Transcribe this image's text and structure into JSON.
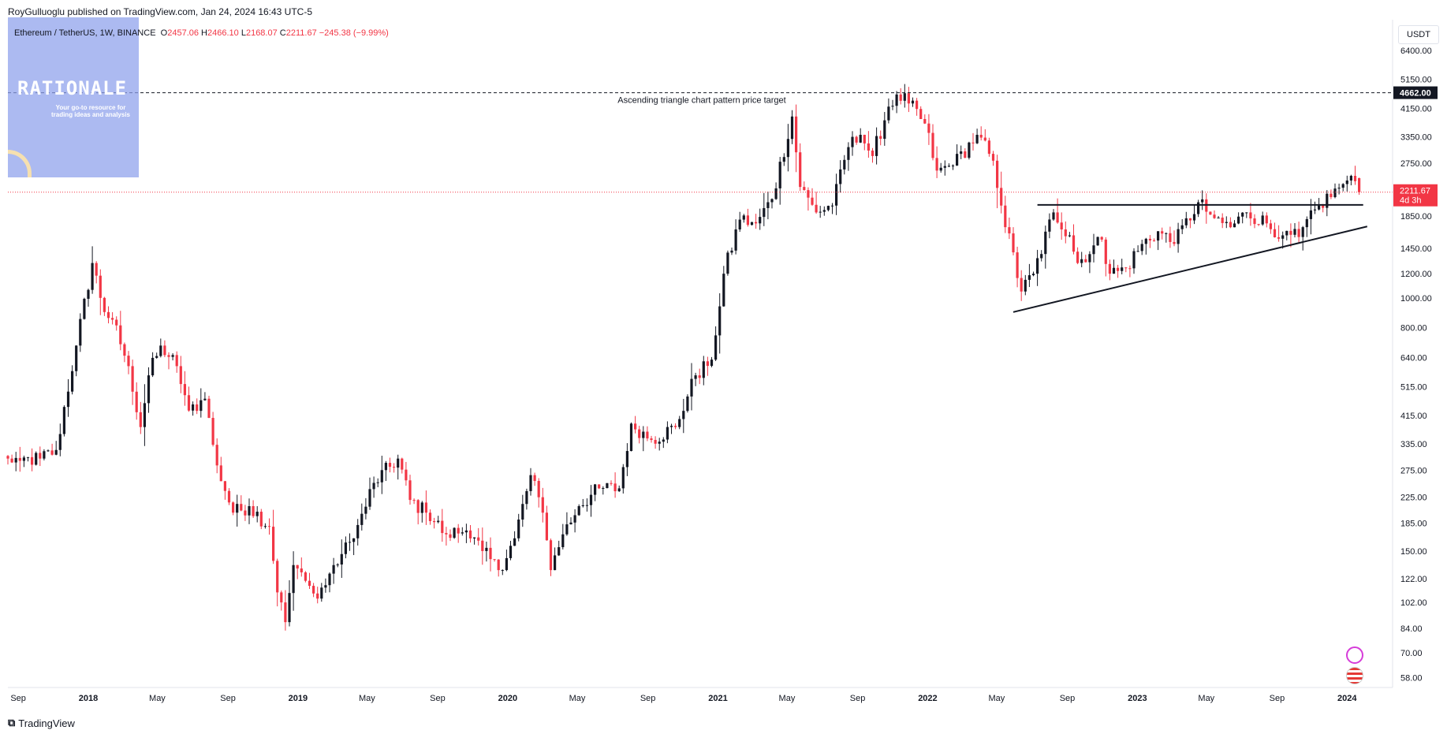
{
  "header": {
    "published": "RoyGulluoglu published on TradingView.com, Jan 24, 2024 16:43 UTC-5",
    "symbol": "Ethereum / TetherUS, 1W, BINANCE",
    "ohlc": [
      {
        "label": "O",
        "value": "2457.06"
      },
      {
        "label": "H",
        "value": "2466.10"
      },
      {
        "label": "L",
        "value": "2168.07"
      },
      {
        "label": "C",
        "value": "2211.67"
      }
    ],
    "change": "−245.38 (−9.99%)"
  },
  "watermark": {
    "title": "RATIONALE",
    "subtitle": "Your go-to resource for trading ideas and analysis"
  },
  "currency_button": "USDT",
  "footer": {
    "brand": "TradingView",
    "brand_icon": "tradingview-logo-icon"
  },
  "colors": {
    "up": "#131722",
    "down": "#f23645",
    "price_line": "#f23645",
    "target_line": "#131722",
    "watermark": "#8ca0eb"
  },
  "chart_data": {
    "type": "candlestick",
    "symbol": "ETH/USDT",
    "interval": "1W",
    "scale": "log",
    "y_ticks": [
      6400,
      5150,
      4150,
      3350,
      2750,
      1850,
      1450,
      1200,
      1000,
      800,
      640,
      515,
      415,
      335,
      275,
      225,
      185,
      150,
      122,
      102,
      84,
      70,
      58
    ],
    "x_ticks": [
      {
        "label": "Sep",
        "date": "2017-09-01"
      },
      {
        "label": "2018",
        "date": "2018-01-01"
      },
      {
        "label": "May",
        "date": "2018-05-01"
      },
      {
        "label": "Sep",
        "date": "2018-09-01"
      },
      {
        "label": "2019",
        "date": "2019-01-01"
      },
      {
        "label": "May",
        "date": "2019-05-01"
      },
      {
        "label": "Sep",
        "date": "2019-09-01"
      },
      {
        "label": "2020",
        "date": "2020-01-01"
      },
      {
        "label": "May",
        "date": "2020-05-01"
      },
      {
        "label": "Sep",
        "date": "2020-09-01"
      },
      {
        "label": "2021",
        "date": "2021-01-01"
      },
      {
        "label": "May",
        "date": "2021-05-01"
      },
      {
        "label": "Sep",
        "date": "2021-09-01"
      },
      {
        "label": "2022",
        "date": "2022-01-01"
      },
      {
        "label": "May",
        "date": "2022-05-01"
      },
      {
        "label": "Sep",
        "date": "2022-09-01"
      },
      {
        "label": "2023",
        "date": "2023-01-01"
      },
      {
        "label": "May",
        "date": "2023-05-01"
      },
      {
        "label": "Sep",
        "date": "2023-09-01"
      },
      {
        "label": "2024",
        "date": "2024-01-01"
      }
    ],
    "anchors": [
      {
        "date": "2017-08-14",
        "close": 300
      },
      {
        "date": "2017-09-04",
        "close": 295
      },
      {
        "date": "2017-10-09",
        "close": 300
      },
      {
        "date": "2017-11-06",
        "close": 320
      },
      {
        "date": "2017-12-11",
        "close": 700
      },
      {
        "date": "2018-01-08",
        "close": 1300
      },
      {
        "date": "2018-01-29",
        "close": 900
      },
      {
        "date": "2018-02-12",
        "close": 850
      },
      {
        "date": "2018-03-12",
        "close": 600
      },
      {
        "date": "2018-04-02",
        "close": 380
      },
      {
        "date": "2018-04-16",
        "close": 560
      },
      {
        "date": "2018-05-07",
        "close": 700
      },
      {
        "date": "2018-06-04",
        "close": 600
      },
      {
        "date": "2018-06-25",
        "close": 430
      },
      {
        "date": "2018-07-23",
        "close": 470
      },
      {
        "date": "2018-08-13",
        "close": 285
      },
      {
        "date": "2018-09-10",
        "close": 200
      },
      {
        "date": "2018-10-08",
        "close": 210
      },
      {
        "date": "2018-11-12",
        "close": 180
      },
      {
        "date": "2018-11-26",
        "close": 110
      },
      {
        "date": "2018-12-10",
        "close": 88
      },
      {
        "date": "2018-12-24",
        "close": 135
      },
      {
        "date": "2019-01-14",
        "close": 120
      },
      {
        "date": "2019-02-04",
        "close": 105
      },
      {
        "date": "2019-03-04",
        "close": 135
      },
      {
        "date": "2019-04-08",
        "close": 165
      },
      {
        "date": "2019-05-13",
        "close": 250
      },
      {
        "date": "2019-06-24",
        "close": 300
      },
      {
        "date": "2019-07-15",
        "close": 220
      },
      {
        "date": "2019-08-12",
        "close": 200
      },
      {
        "date": "2019-09-16",
        "close": 170
      },
      {
        "date": "2019-10-21",
        "close": 175
      },
      {
        "date": "2019-11-18",
        "close": 150
      },
      {
        "date": "2019-12-16",
        "close": 130
      },
      {
        "date": "2020-01-13",
        "close": 165
      },
      {
        "date": "2020-02-10",
        "close": 265
      },
      {
        "date": "2020-03-02",
        "close": 200
      },
      {
        "date": "2020-03-16",
        "close": 130
      },
      {
        "date": "2020-04-06",
        "close": 170
      },
      {
        "date": "2020-05-04",
        "close": 210
      },
      {
        "date": "2020-06-08",
        "close": 240
      },
      {
        "date": "2020-07-13",
        "close": 240
      },
      {
        "date": "2020-08-03",
        "close": 390
      },
      {
        "date": "2020-09-07",
        "close": 345
      },
      {
        "date": "2020-10-19",
        "close": 380
      },
      {
        "date": "2020-11-23",
        "close": 560
      },
      {
        "date": "2020-12-21",
        "close": 630
      },
      {
        "date": "2021-01-11",
        "close": 1200
      },
      {
        "date": "2021-02-08",
        "close": 1800
      },
      {
        "date": "2021-03-08",
        "close": 1750
      },
      {
        "date": "2021-04-05",
        "close": 2100
      },
      {
        "date": "2021-05-10",
        "close": 3900
      },
      {
        "date": "2021-05-24",
        "close": 2300
      },
      {
        "date": "2021-06-21",
        "close": 1900
      },
      {
        "date": "2021-07-19",
        "close": 2000
      },
      {
        "date": "2021-08-16",
        "close": 3100
      },
      {
        "date": "2021-09-06",
        "close": 3400
      },
      {
        "date": "2021-09-27",
        "close": 2900
      },
      {
        "date": "2021-10-25",
        "close": 4200
      },
      {
        "date": "2021-11-08",
        "close": 4600
      },
      {
        "date": "2021-11-29",
        "close": 4300
      },
      {
        "date": "2021-12-27",
        "close": 3700
      },
      {
        "date": "2022-01-17",
        "close": 2600
      },
      {
        "date": "2022-02-14",
        "close": 2700
      },
      {
        "date": "2022-03-28",
        "close": 3400
      },
      {
        "date": "2022-04-25",
        "close": 2800
      },
      {
        "date": "2022-05-09",
        "close": 2000
      },
      {
        "date": "2022-06-13",
        "close": 1050
      },
      {
        "date": "2022-07-04",
        "close": 1200
      },
      {
        "date": "2022-08-08",
        "close": 1900
      },
      {
        "date": "2022-09-05",
        "close": 1600
      },
      {
        "date": "2022-09-19",
        "close": 1300
      },
      {
        "date": "2022-10-31",
        "close": 1550
      },
      {
        "date": "2022-11-14",
        "close": 1200
      },
      {
        "date": "2022-12-12",
        "close": 1250
      },
      {
        "date": "2023-01-09",
        "close": 1500
      },
      {
        "date": "2023-02-06",
        "close": 1650
      },
      {
        "date": "2023-03-06",
        "close": 1500
      },
      {
        "date": "2023-04-17",
        "close": 2050
      },
      {
        "date": "2023-05-15",
        "close": 1820
      },
      {
        "date": "2023-06-12",
        "close": 1700
      },
      {
        "date": "2023-07-10",
        "close": 1900
      },
      {
        "date": "2023-08-14",
        "close": 1750
      },
      {
        "date": "2023-09-11",
        "close": 1600
      },
      {
        "date": "2023-10-09",
        "close": 1580
      },
      {
        "date": "2023-11-13",
        "close": 2000
      },
      {
        "date": "2023-12-25",
        "close": 2350
      },
      {
        "date": "2024-01-08",
        "close": 2500
      },
      {
        "date": "2024-01-22",
        "close": 2211.67
      }
    ],
    "last_candle": {
      "open": 2457.06,
      "high": 2466.1,
      "low": 2168.07,
      "close": 2211.67
    },
    "current_price": {
      "value": 2211.67,
      "label": "2211.67",
      "countdown": "4d 3h"
    },
    "annotations": [
      {
        "type": "horizontal_line",
        "style": "dashed",
        "value": 4662.0,
        "label": "4662.00",
        "text": "Ascending triangle chart pattern price target"
      },
      {
        "type": "trendline",
        "name": "resistance",
        "start": {
          "date": "2022-07-11",
          "value": 2010
        },
        "end": {
          "date": "2024-01-29",
          "value": 2010
        }
      },
      {
        "type": "trendline",
        "name": "support",
        "start": {
          "date": "2022-05-30",
          "value": 900
        },
        "end": {
          "date": "2024-02-05",
          "value": 1710
        }
      }
    ]
  }
}
